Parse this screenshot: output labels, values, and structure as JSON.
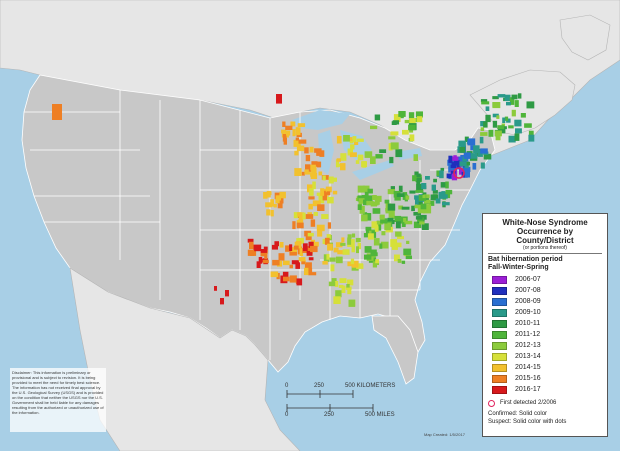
{
  "colors": {
    "ocean": "#a8cfe6",
    "us_land": "#c8c8c8",
    "canada_land": "#e6e6e6",
    "border": "#ffffff",
    "lakes": "#a8cfe6",
    "first_detected_ring": "#e0245e"
  },
  "legend": {
    "title_line1": "White-Nose Syndrome",
    "title_line2": "Occurrence by County/District",
    "note": "(or portions thereof)",
    "heading_line1": "Bat hibernation period",
    "heading_line2": "Fall-Winter-Spring",
    "periods": [
      {
        "label": "2006-07",
        "color": "#9b1fd6"
      },
      {
        "label": "2007-08",
        "color": "#1f2fbd"
      },
      {
        "label": "2008-09",
        "color": "#2a6fd1"
      },
      {
        "label": "2009-10",
        "color": "#2a9a8a"
      },
      {
        "label": "2010-11",
        "color": "#2e9a44"
      },
      {
        "label": "2011-12",
        "color": "#4fb53a"
      },
      {
        "label": "2012-13",
        "color": "#8ccb3c"
      },
      {
        "label": "2013-14",
        "color": "#d6e03a"
      },
      {
        "label": "2014-15",
        "color": "#f2c12e"
      },
      {
        "label": "2015-16",
        "color": "#ee7f24"
      },
      {
        "label": "2016-17",
        "color": "#d7191c"
      }
    ],
    "first_detected": "First detected 2/2006",
    "confirmed": "Confirmed:  Solid color",
    "suspect": "Suspect:  Solid color with dots"
  },
  "scale": {
    "km_ticks": [
      "0",
      "250",
      "500 KILOMETERS"
    ],
    "mi_ticks": [
      "0",
      "250",
      "500 MILES"
    ]
  },
  "disclaimer": "Disclaimer: This information is preliminary or provisional and is subject to revision. It is being provided to meet the need for timely best science. The information has not received final approval by the U.S. Geological Survey (USGS) and is provided on the condition that neither the USGS nor the U.S. Government shall be held liable for any damages resulting from the authorized or unauthorized use of the information.",
  "credit": "Map Created: 1/5/2017"
}
